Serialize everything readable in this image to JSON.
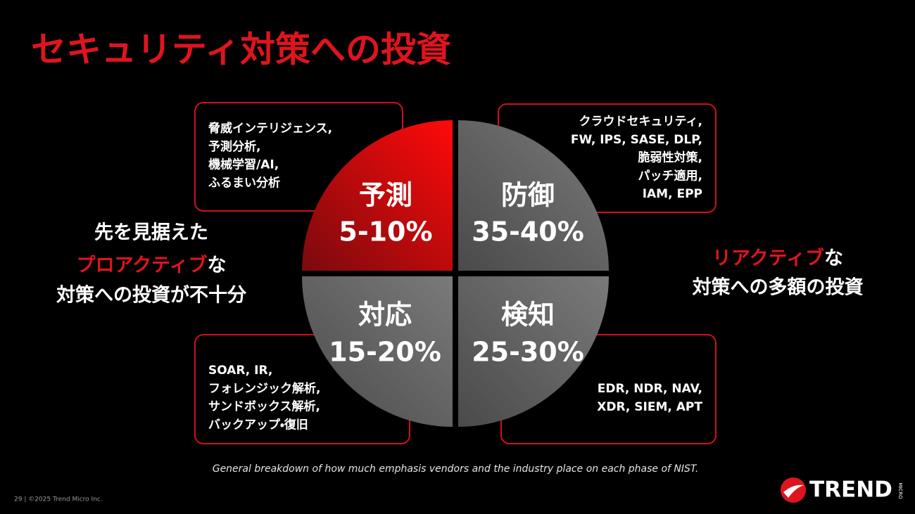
{
  "title": "セキュリティ対策への投資",
  "quadrants": [
    {
      "name": "予測",
      "range": "5-10%"
    },
    {
      "name": "防御",
      "range": "35-40%"
    },
    {
      "name": "対応",
      "range": "15-20%"
    },
    {
      "name": "検知",
      "range": "25-30%"
    }
  ],
  "boxes": [
    {
      "lines": [
        "脅威インテリジェンス,",
        "予測分析,",
        "機械学習/AI,",
        "ふるまい分析"
      ]
    },
    {
      "lines": [
        "クラウドセキュリティ,",
        "FW, IPS, SASE, DLP,",
        "脆弱性対策,",
        "パッチ適用,",
        "IAM, EPP"
      ]
    },
    {
      "lines": [
        "SOAR, IR,",
        "フォレンジック解析,",
        "サンドボックス解析,",
        "バックアップ・復旧"
      ]
    },
    {
      "lines": [
        "EDR, NDR, NAV,",
        "XDR, SIEM, APT"
      ]
    }
  ],
  "left_note": {
    "line1": "先を見据えた",
    "highlight": "プロアクティブ",
    "suffix": "な",
    "line3": "対策への投資が不十分"
  },
  "right_note": {
    "highlight": "リアクティブ",
    "suffix": "な",
    "line2": "対策への多額の投資"
  },
  "caption": "General breakdown of how much emphasis vendors and the industry place on each phase of NIST.",
  "footer": "29 | ©2025 Trend Micro Inc.",
  "logo": {
    "name": "TREND",
    "sub": "MICRO"
  }
}
